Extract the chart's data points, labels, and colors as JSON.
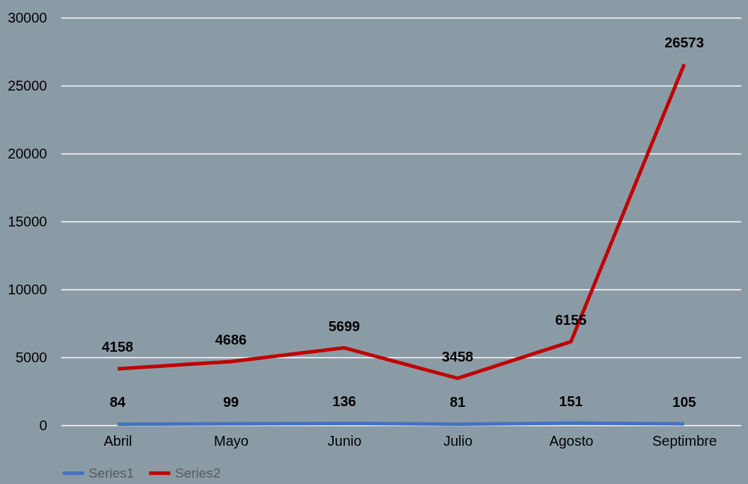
{
  "chart_data": {
    "type": "line",
    "categories": [
      "Abril",
      "Mayo",
      "Junio",
      "Julio",
      "Agosto",
      "Septimbre"
    ],
    "series": [
      {
        "name": "Series1",
        "color": "#4472c4",
        "values": [
          84,
          99,
          136,
          81,
          151,
          105
        ]
      },
      {
        "name": "Series2",
        "color": "#c00000",
        "values": [
          4158,
          4686,
          5699,
          3458,
          6155,
          26573
        ]
      }
    ],
    "ylim": [
      0,
      30000
    ],
    "yticks": [
      0,
      5000,
      10000,
      15000,
      20000,
      25000,
      30000
    ],
    "grid": "y",
    "legend": "bottom",
    "data_labels": true,
    "marker": "none",
    "line_style": "solid"
  }
}
